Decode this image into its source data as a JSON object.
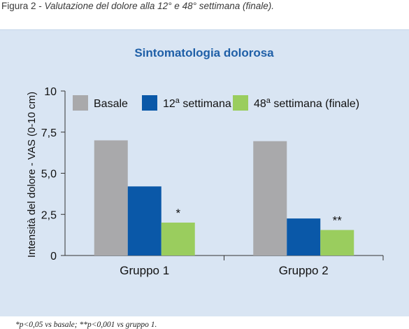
{
  "figure": {
    "label": "Figura 2",
    "separator": " - ",
    "caption": "Valutazione del dolore alla 12° e 48° settimana (finale)."
  },
  "footnote": "*p<0,05 vs basale; **p<0,001 vs gruppo 1.",
  "colors": {
    "panel_background": "#d9e5f3",
    "title": "#1f5fa7",
    "basale": "#a9a9ab",
    "settimana12": "#0a58a8",
    "settimana48": "#9acd5e"
  },
  "chart_data": {
    "type": "bar",
    "title": "Sintomatologia dolorosa",
    "xlabel": "",
    "ylabel": "Intensità del dolore - VAS (0-10 cm)",
    "ylim": [
      0,
      10
    ],
    "yticks": [
      "0",
      "2,5",
      "5,0",
      "7,5",
      "10"
    ],
    "ytick_values": [
      0,
      2.5,
      5,
      7.5,
      10
    ],
    "categories": [
      "Gruppo 1",
      "Gruppo 2"
    ],
    "series": [
      {
        "name": "Basale",
        "legend_suffix": "",
        "values": [
          7.0,
          6.95
        ],
        "color": "#a9a9ab"
      },
      {
        "name": "12",
        "legend_suffix": " settimana",
        "values": [
          4.2,
          2.25
        ],
        "color": "#0a58a8"
      },
      {
        "name": "48",
        "legend_suffix": " settimana (finale)",
        "values": [
          2.0,
          1.55
        ],
        "color": "#9acd5e"
      }
    ],
    "ordinal_mark": "a",
    "annotations": [
      {
        "category": 0,
        "series": 2,
        "text": "*"
      },
      {
        "category": 1,
        "series": 2,
        "text": "**"
      }
    ],
    "legend_position": "top",
    "grid": false
  }
}
